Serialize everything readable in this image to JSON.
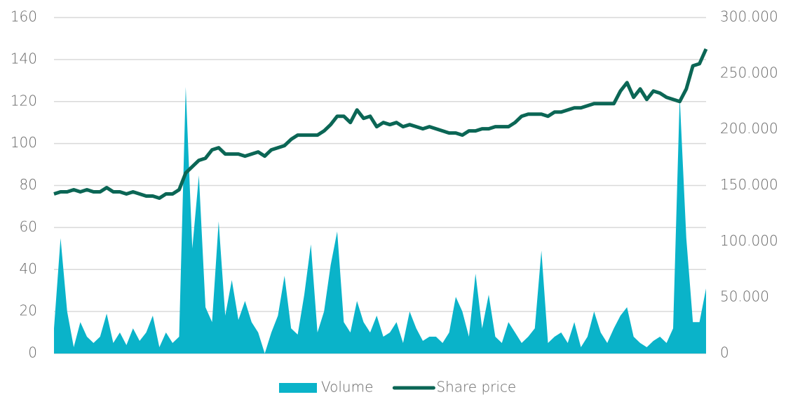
{
  "chart_data": {
    "type": "line",
    "series": [
      {
        "name": "Volume",
        "color": "#0ab3c9",
        "axis": "y2",
        "type": "area",
        "values": [
          22500,
          103000,
          37500,
          5600,
          28000,
          15000,
          9400,
          15000,
          35600,
          9400,
          18800,
          7500,
          22500,
          11300,
          18800,
          33800,
          5600,
          18800,
          9400,
          15000,
          238000,
          93800,
          159000,
          41300,
          28000,
          118000,
          33800,
          65600,
          30000,
          46900,
          28000,
          18800,
          0,
          18800,
          33800,
          69400,
          22500,
          16900,
          52500,
          97500,
          18800,
          37500,
          78800,
          109000,
          28000,
          18800,
          46900,
          28000,
          18800,
          33800,
          15000,
          18800,
          28000,
          9400,
          37500,
          22500,
          11300,
          15000,
          15000,
          9400,
          18800,
          50600,
          37500,
          15000,
          71300,
          22500,
          52500,
          15000,
          9400,
          28000,
          18800,
          9400,
          15000,
          22500,
          91900,
          9400,
          15000,
          18800,
          9400,
          28000,
          5600,
          15000,
          37500,
          18800,
          9400,
          22500,
          33800,
          41300,
          15000,
          9400,
          5600,
          11300,
          15000,
          9400,
          22500,
          229000,
          103000,
          28000,
          28000,
          58100
        ]
      },
      {
        "name": "Share price",
        "color": "#0b6655",
        "type": "line",
        "values": [
          76,
          77,
          77,
          78,
          77,
          78,
          77,
          77,
          79,
          77,
          77,
          76,
          77,
          76,
          75,
          75,
          74,
          76,
          76,
          78,
          86,
          89,
          92,
          93,
          97,
          98,
          95,
          95,
          95,
          94,
          95,
          96,
          94,
          97,
          98,
          99,
          102,
          104,
          104,
          104,
          104,
          106,
          109,
          113,
          113,
          110,
          116,
          112,
          113,
          108,
          110,
          109,
          110,
          108,
          109,
          108,
          107,
          108,
          107,
          106,
          105,
          105,
          104,
          106,
          106,
          107,
          107,
          108,
          108,
          108,
          110,
          113,
          114,
          114,
          114,
          113,
          115,
          115,
          116,
          117,
          117,
          118,
          119,
          119,
          119,
          119,
          125,
          129,
          122,
          126,
          121,
          125,
          124,
          122,
          121,
          120,
          126,
          137,
          138,
          145
        ]
      }
    ],
    "ylim": [
      0,
      160
    ],
    "yticks": [
      0,
      20,
      40,
      60,
      80,
      100,
      120,
      140,
      160
    ],
    "y2lim": [
      0,
      300000
    ],
    "y2ticks": [
      0,
      {
        "value": 50000,
        "label": "50.000"
      },
      {
        "value": 100000,
        "label": "100.000"
      },
      {
        "value": 150000,
        "label": "150.000"
      },
      {
        "value": 200000,
        "label": "200.000"
      },
      {
        "value": 250000,
        "label": "250.000"
      },
      {
        "value": 300000,
        "label": "300.000"
      }
    ],
    "grid": true,
    "legend": "bottom"
  }
}
